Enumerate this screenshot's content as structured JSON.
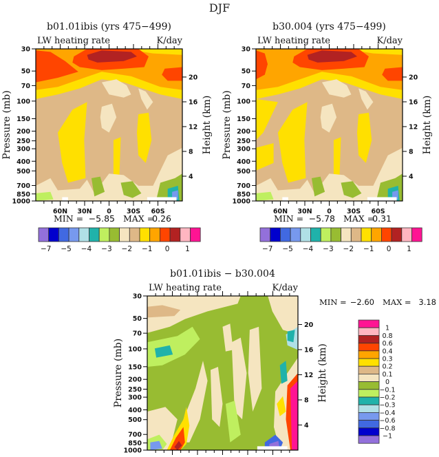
{
  "chart_data": {
    "type": "heatmap",
    "title": "DJF",
    "x_ticks": [
      "60N",
      "30N",
      "0",
      "30S",
      "60S"
    ],
    "pressure_ticks": [
      "30",
      "50",
      "70",
      "100",
      "150",
      "200",
      "250",
      "300",
      "400",
      "500",
      "700",
      "850",
      "1000"
    ],
    "pressure_values": [
      30,
      50,
      70,
      100,
      150,
      200,
      250,
      300,
      400,
      500,
      700,
      850,
      1000
    ],
    "height_ticks": [
      "20",
      "16",
      "12",
      "8",
      "4"
    ],
    "height_values": [
      20,
      16,
      12,
      8,
      4
    ],
    "ylabel": "Pressure (mb)",
    "ylabel_right": "Height (km)",
    "panels": [
      {
        "title": "b01.01ibis (yrs 475−499)",
        "left_label": "LW heating rate",
        "right_label": "K/day",
        "min_label": "MIN =",
        "min_value": "−5.85",
        "max_label": "MAX =",
        "max_value": "0.26"
      },
      {
        "title": "b30.004 (yrs 475−499)",
        "left_label": "LW heating rate",
        "right_label": "K/day",
        "min_label": "MIN =",
        "min_value": "−5.78",
        "max_label": "MAX =",
        "max_value": "0.31"
      },
      {
        "title": "b01.01ibis − b30.004",
        "left_label": "LW heating rate",
        "right_label": "K/day",
        "min_label": "MIN =",
        "min_value": "−2.60",
        "max_label": "MAX =",
        "max_value": "3.18"
      }
    ],
    "colorbar_top": {
      "colors": [
        "#9370DB",
        "#0000CD",
        "#4169E1",
        "#7799EE",
        "#B0E0E6",
        "#20B2AA",
        "#BFEF5F",
        "#98BC32",
        "#F5E5C0",
        "#DEB887",
        "#FFE000",
        "#FFA500",
        "#FF4500",
        "#B22222",
        "#FFB6C1",
        "#FF1493"
      ],
      "labels": [
        "−7",
        "−5",
        "−4",
        "−3",
        "−2",
        "−1",
        "0",
        "1"
      ]
    },
    "colorbar_diff": {
      "colors": [
        "#FF1493",
        "#FFB6C1",
        "#B22222",
        "#FF4500",
        "#FFA500",
        "#FFE000",
        "#DEB887",
        "#F5E5C0",
        "#98BC32",
        "#BFEF5F",
        "#20B2AA",
        "#B0E0E6",
        "#7799EE",
        "#4169E1",
        "#0000CD",
        "#9370DB"
      ],
      "labels": [
        "1",
        "0.8",
        "0.6",
        "0.4",
        "0.3",
        "0.2",
        "0.1",
        "0",
        "−0.1",
        "−0.2",
        "−0.3",
        "−0.4",
        "−0.6",
        "−0.8",
        "−1"
      ]
    }
  }
}
